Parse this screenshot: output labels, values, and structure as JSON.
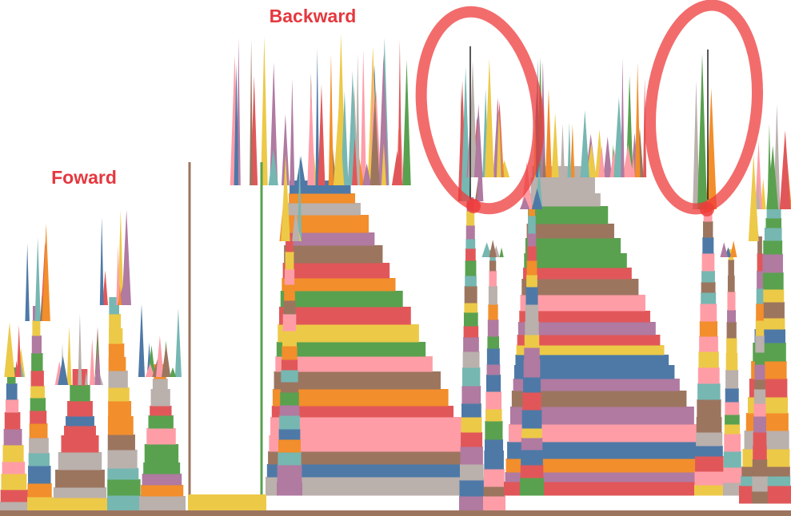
{
  "annotations": {
    "forward": "Foward",
    "backward": "Backward"
  }
}
